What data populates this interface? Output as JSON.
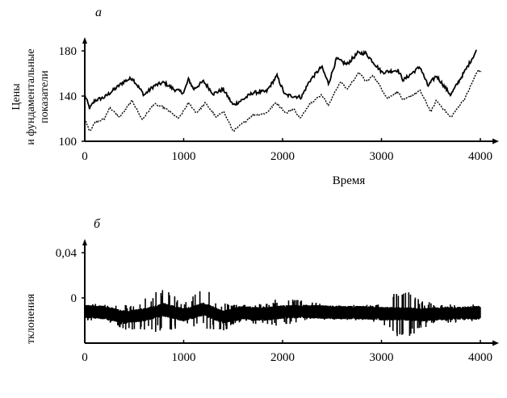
{
  "chart_data": [
    {
      "type": "line",
      "panel_label": "а",
      "ylabel_lines": [
        "Цены",
        "и фундаментальные",
        "показатели"
      ],
      "xlabel": "Время",
      "xlim": [
        0,
        4000
      ],
      "ylim": [
        100,
        180
      ],
      "x_ticks": [
        "0",
        "1000",
        "2000",
        "3000",
        "4000"
      ],
      "y_ticks": [
        "100",
        "140",
        "180"
      ],
      "grid": false,
      "series": [
        {
          "style": "solid",
          "x": [
            0,
            50,
            100,
            200,
            300,
            400,
            480,
            600,
            700,
            800,
            900,
            1000,
            1050,
            1100,
            1200,
            1300,
            1400,
            1500,
            1600,
            1700,
            1837,
            1943,
            2025,
            2190,
            2270,
            2395,
            2465,
            2545,
            2650,
            2760,
            2840,
            3005,
            3165,
            3220,
            3390,
            3470,
            3555,
            3700,
            3850,
            3960
          ],
          "y": [
            141,
            129,
            136,
            139,
            146,
            153,
            156,
            141,
            149,
            152,
            146,
            143,
            155,
            146,
            153,
            142,
            146,
            132,
            137,
            143,
            144,
            158,
            141,
            139,
            153,
            166,
            151,
            173,
            168,
            178,
            178,
            161,
            163,
            154,
            166,
            149,
            158,
            141,
            163,
            180
          ]
        },
        {
          "style": "dotted",
          "x": [
            0,
            50,
            100,
            200,
            250,
            350,
            480,
            580,
            700,
            800,
            950,
            1050,
            1130,
            1220,
            1330,
            1400,
            1500,
            1600,
            1700,
            1837,
            1930,
            2040,
            2110,
            2180,
            2270,
            2395,
            2465,
            2585,
            2650,
            2775,
            2840,
            2920,
            3060,
            3165,
            3220,
            3390,
            3500,
            3555,
            3700,
            3850,
            3975,
            4010
          ],
          "y": [
            120,
            109,
            116,
            120,
            130,
            121,
            136,
            119,
            133,
            130,
            120,
            134,
            125,
            134,
            121,
            127,
            109,
            116,
            123,
            125,
            134,
            125,
            129,
            120,
            133,
            141,
            132,
            153,
            146,
            161,
            153,
            158,
            138,
            144,
            136,
            145,
            126,
            136,
            121,
            139,
            163,
            161
          ]
        }
      ]
    },
    {
      "type": "area",
      "panel_label": "б",
      "ylabel": "тклонения",
      "xlim": [
        0,
        4000
      ],
      "ylim": [
        -0.04,
        0.05
      ],
      "x_ticks": [
        "0",
        "1000",
        "2000",
        "3000",
        "4000"
      ],
      "y_ticks": [
        "0",
        "0,04"
      ],
      "grid": false,
      "envelope": {
        "x": [
          0,
          200,
          400,
          600,
          800,
          1000,
          1200,
          1400,
          1600,
          1800,
          2000,
          2200,
          2400,
          2600,
          2800,
          3000,
          3200,
          3400,
          3600,
          3800,
          4000
        ],
        "max": [
          -0.004,
          -0.006,
          -0.006,
          0.0,
          0.01,
          -0.004,
          0.01,
          -0.004,
          -0.006,
          -0.004,
          0.0,
          -0.002,
          -0.005,
          -0.006,
          -0.006,
          -0.004,
          0.01,
          -0.002,
          -0.006,
          -0.005,
          -0.006
        ],
        "min": [
          -0.02,
          -0.02,
          -0.028,
          -0.03,
          -0.031,
          -0.026,
          -0.03,
          -0.03,
          -0.02,
          -0.025,
          -0.025,
          -0.022,
          -0.02,
          -0.02,
          -0.02,
          -0.024,
          -0.038,
          -0.028,
          -0.022,
          -0.022,
          -0.02
        ]
      }
    }
  ]
}
